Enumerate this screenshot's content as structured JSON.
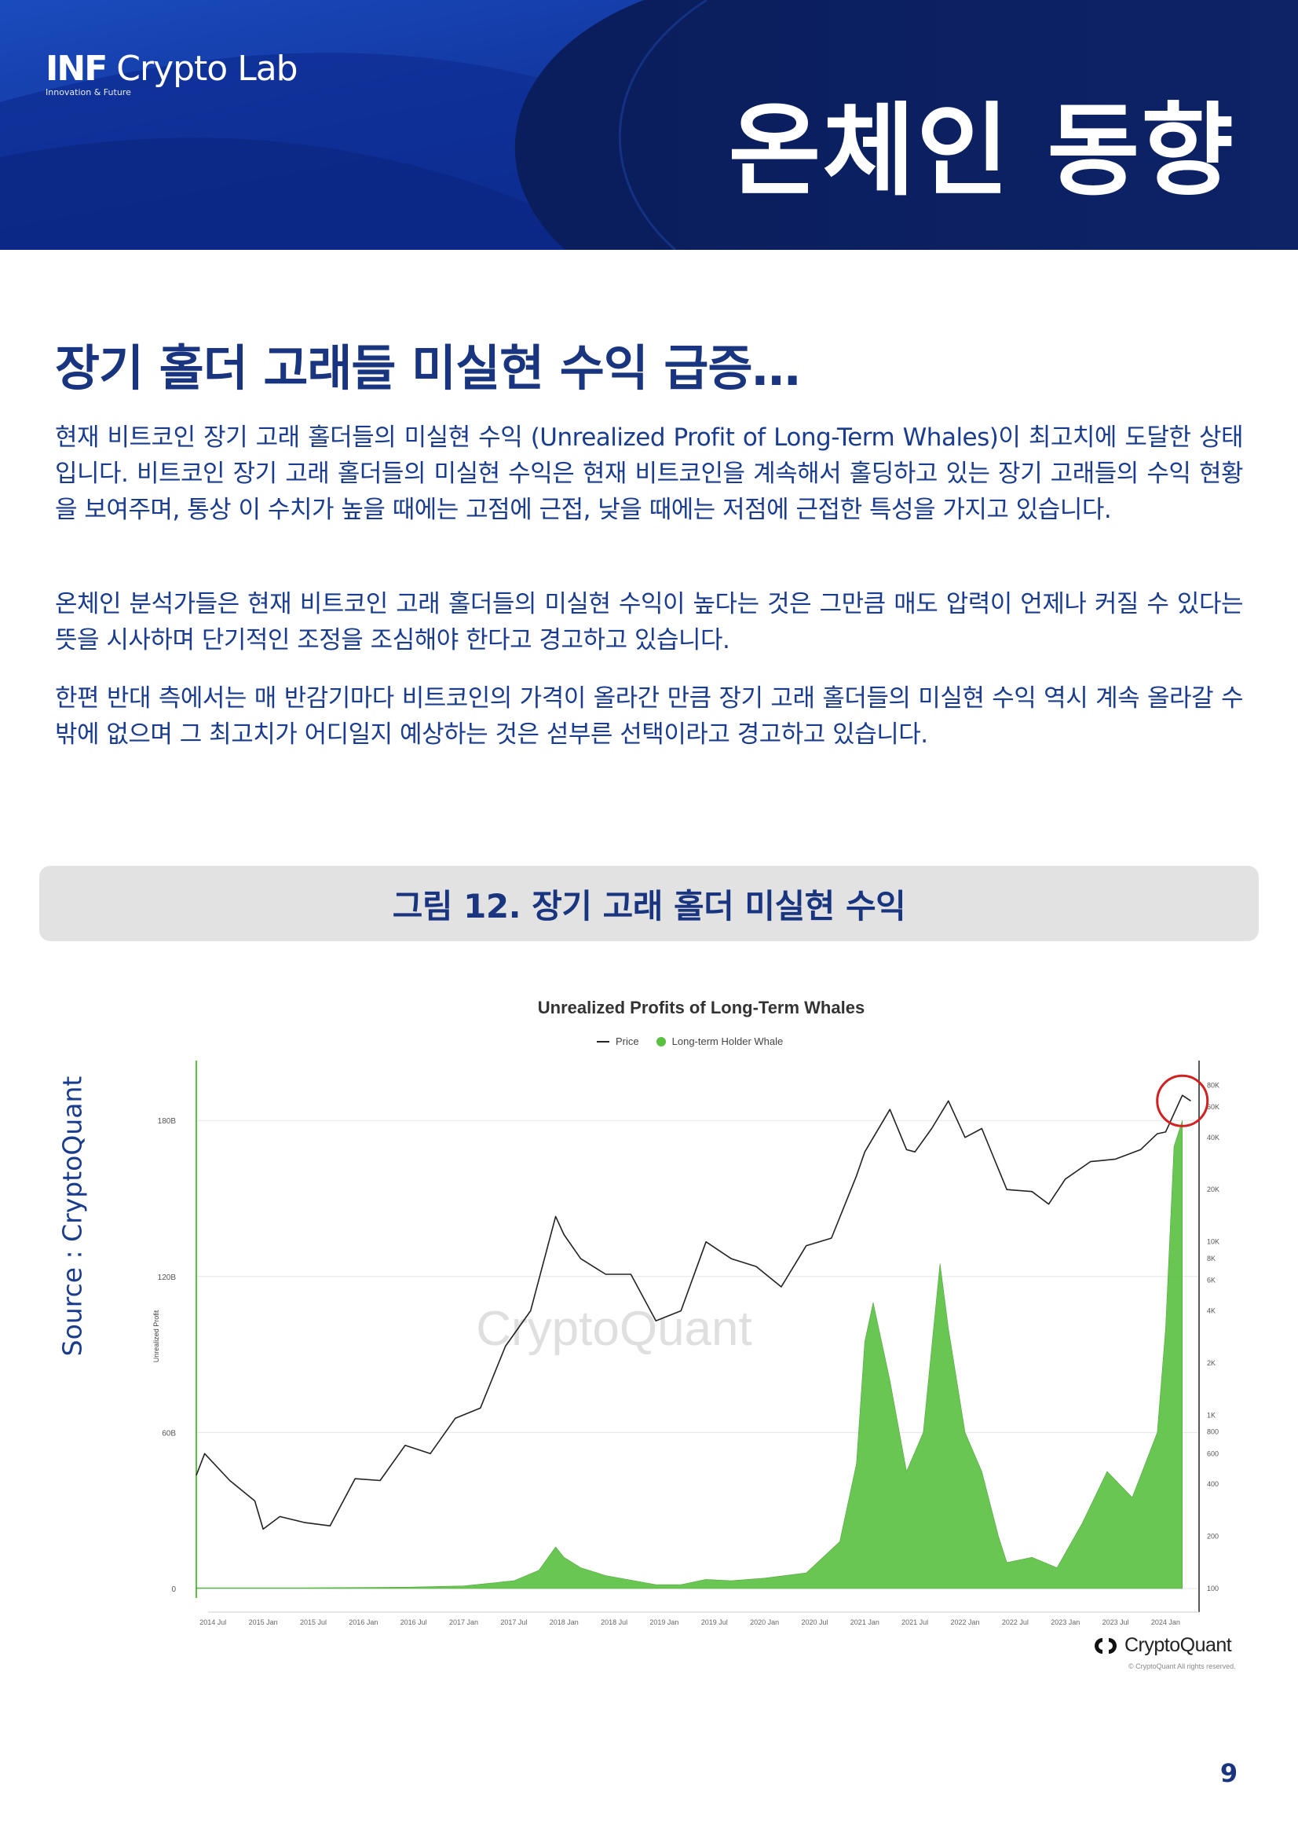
{
  "header": {
    "logo_main": "Crypto Lab",
    "logo_bold": "INF",
    "logo_sub": "Innovation & Future",
    "page_title": "온체인 동향"
  },
  "article": {
    "title": "장기 홀더 고래들 미실현 수익 급증…",
    "paragraphs": [
      "현재 비트코인 장기 고래 홀더들의 미실현 수익 (Unrealized Profit of Long-Term Whales)이 최고치에 도달한 상태입니다. 비트코인 장기 고래 홀더들의 미실현 수익은 현재 비트코인을 계속해서 홀딩하고 있는 장기 고래들의 수익 현황을 보여주며, 통상 이 수치가 높을 때에는 고점에 근접, 낮을 때에는 저점에 근접한 특성을 가지고 있습니다.",
      "온체인 분석가들은 현재 비트코인 고래 홀더들의 미실현 수익이 높다는 것은 그만큼 매도 압력이 언제나 커질 수 있다는 뜻을 시사하며 단기적인 조정을 조심해야 한다고 경고하고 있습니다.",
      "한편 반대 측에서는 매 반감기마다 비트코인의 가격이 올라간 만큼 장기 고래 홀더들의 미실현 수익 역시 계속 올라갈 수밖에 없으며 그 최고치가 어디일지 예상하는 것은 섣부른 선택이라고 경고하고 있습니다."
    ]
  },
  "figure": {
    "caption": "그림 12. 장기 고래 홀더 미실현 수익",
    "source": "Source : CryptoQuant"
  },
  "chart_data": {
    "type": "area",
    "title": "Unrealized Profits of Long-Term Whales",
    "ylabel": "Unrealized Profit",
    "watermark": "CryptoQuant",
    "legend": [
      "Price",
      "Long-term Holder Whale"
    ],
    "legend_placement": "top-center",
    "x_tick_labels": [
      "2014 Jul",
      "2015 Jan",
      "2015 Jul",
      "2016 Jan",
      "2016 Jul",
      "2017 Jan",
      "2017 Jul",
      "2018 Jan",
      "2018 Jul",
      "2019 Jan",
      "2019 Jul",
      "2020 Jan",
      "2020 Jul",
      "2021 Jan",
      "2021 Jul",
      "2022 Jan",
      "2022 Jul",
      "2023 Jan",
      "2023 Jul",
      "2024 Jan"
    ],
    "y_left_ticks": [
      "0",
      "60B",
      "120B",
      "180B"
    ],
    "y_left_range_B": [
      0,
      200
    ],
    "y_right_ticks": [
      "100",
      "200",
      "400",
      "600",
      "800",
      "1K",
      "2K",
      "4K",
      "6K",
      "8K",
      "10K",
      "20K",
      "40K",
      "60K",
      "80K"
    ],
    "y_right_scale": "log",
    "y_right_range": [
      100,
      100000
    ],
    "grid": true,
    "series": [
      {
        "name": "Long-term Holder Whale",
        "axis": "left",
        "unit": "B",
        "color": "#5ac040",
        "x": [
          "2014-05",
          "2014-09",
          "2015-01",
          "2015-06",
          "2016-01",
          "2016-06",
          "2017-01",
          "2017-04",
          "2017-07",
          "2017-10",
          "2017-12",
          "2018-01",
          "2018-03",
          "2018-06",
          "2018-12",
          "2019-03",
          "2019-06",
          "2019-09",
          "2020-01",
          "2020-06",
          "2020-10",
          "2020-12",
          "2021-01",
          "2021-02",
          "2021-04",
          "2021-06",
          "2021-08",
          "2021-10",
          "2021-11",
          "2022-01",
          "2022-03",
          "2022-05",
          "2022-06",
          "2022-09",
          "2022-12",
          "2023-03",
          "2023-06",
          "2023-09",
          "2023-12",
          "2024-01",
          "2024-02",
          "2024-03"
        ],
        "values": [
          0.3,
          0.3,
          0.3,
          0.3,
          0.4,
          0.5,
          1.0,
          2.0,
          3.0,
          7.0,
          16.0,
          12.0,
          8.0,
          5.0,
          1.5,
          1.5,
          3.5,
          3.0,
          4.0,
          6.0,
          18.0,
          48.0,
          95.0,
          110.0,
          80.0,
          45.0,
          60.0,
          125.0,
          100.0,
          60.0,
          45.0,
          20.0,
          10.0,
          12.0,
          8.0,
          25.0,
          45.0,
          35.0,
          60.0,
          100.0,
          170.0,
          180.0
        ]
      },
      {
        "name": "Price",
        "axis": "right",
        "unit": "USD",
        "color": "#222222",
        "x": [
          "2014-05",
          "2014-06",
          "2014-09",
          "2014-12",
          "2015-01",
          "2015-03",
          "2015-06",
          "2015-09",
          "2015-12",
          "2016-03",
          "2016-06",
          "2016-09",
          "2016-12",
          "2017-03",
          "2017-06",
          "2017-09",
          "2017-12",
          "2018-01",
          "2018-03",
          "2018-06",
          "2018-09",
          "2018-12",
          "2019-03",
          "2019-06",
          "2019-09",
          "2019-12",
          "2020-03",
          "2020-06",
          "2020-09",
          "2020-12",
          "2021-01",
          "2021-04",
          "2021-06",
          "2021-07",
          "2021-09",
          "2021-11",
          "2022-01",
          "2022-03",
          "2022-06",
          "2022-09",
          "2022-11",
          "2023-01",
          "2023-04",
          "2023-07",
          "2023-10",
          "2023-12",
          "2024-01",
          "2024-03",
          "2024-04"
        ],
        "values": [
          450,
          600,
          420,
          320,
          220,
          260,
          240,
          230,
          430,
          420,
          670,
          600,
          960,
          1100,
          2500,
          4000,
          14000,
          11000,
          8000,
          6500,
          6500,
          3500,
          4000,
          10000,
          8000,
          7200,
          5500,
          9500,
          10500,
          24000,
          33000,
          58000,
          34000,
          33000,
          45000,
          65000,
          40000,
          45000,
          20000,
          19500,
          16500,
          23000,
          29000,
          30000,
          34000,
          42000,
          43000,
          70000,
          65000
        ]
      }
    ],
    "annotation": "red circle highlighting 2024 peak"
  },
  "brand": {
    "name": "CryptoQuant",
    "copyright": "© CryptoQuant All rights reserved."
  },
  "page_number": "9",
  "colors": {
    "header_dark": "#0a1d5c",
    "header_bright": "#1b45b8",
    "text_navy": "#1a357f",
    "whale_green": "#5ac040",
    "price_black": "#222222",
    "highlight_red": "#d32020"
  }
}
